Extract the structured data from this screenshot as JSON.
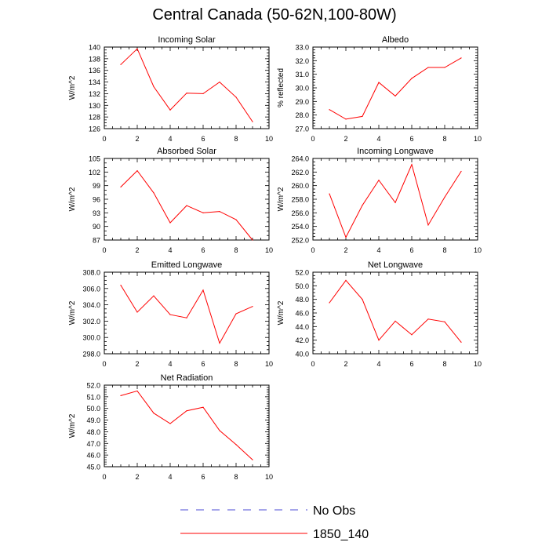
{
  "title": "Central Canada (50-62N,100-80W)",
  "legend": [
    {
      "label": "No Obs",
      "color": "#4b4bd6",
      "dash": true
    },
    {
      "label": "1850_140",
      "color": "#ff0000",
      "dash": false
    }
  ],
  "line_color": "#ff0000",
  "chart_data": [
    {
      "type": "line",
      "title": "Incoming Solar",
      "ylabel": "W/m^2",
      "xlim": [
        0,
        10
      ],
      "xticks": [
        0,
        2,
        4,
        6,
        8,
        10
      ],
      "ylim": [
        126,
        140
      ],
      "yticks": [
        126,
        128,
        130,
        132,
        134,
        136,
        138,
        140
      ],
      "ydec": 0,
      "series": [
        {
          "name": "1850_140",
          "x": [
            1,
            2,
            3,
            4,
            5,
            6,
            7,
            8,
            9
          ],
          "values": [
            137.0,
            139.7,
            133.2,
            129.2,
            132.1,
            132.0,
            134.0,
            131.4,
            127.2
          ]
        }
      ]
    },
    {
      "type": "line",
      "title": "Albedo",
      "ylabel": "% reflected",
      "xlim": [
        0,
        10
      ],
      "xticks": [
        0,
        2,
        4,
        6,
        8,
        10
      ],
      "ylim": [
        27,
        33
      ],
      "yticks": [
        27,
        28,
        29,
        30,
        31,
        32,
        33
      ],
      "ydec": 1,
      "series": [
        {
          "name": "1850_140",
          "x": [
            1,
            2,
            3,
            4,
            5,
            6,
            7,
            8,
            9
          ],
          "values": [
            28.4,
            27.7,
            27.9,
            30.4,
            29.4,
            30.7,
            31.5,
            31.5,
            32.2
          ]
        }
      ]
    },
    {
      "type": "line",
      "title": "Absorbed Solar",
      "ylabel": "W/m^2",
      "xlim": [
        0,
        10
      ],
      "xticks": [
        0,
        2,
        4,
        6,
        8,
        10
      ],
      "ylim": [
        87,
        105
      ],
      "yticks": [
        87,
        90,
        93,
        96,
        99,
        102,
        105
      ],
      "ydec": 0,
      "series": [
        {
          "name": "1850_140",
          "x": [
            1,
            2,
            3,
            4,
            5,
            6,
            7,
            8,
            9
          ],
          "values": [
            98.7,
            102.3,
            97.4,
            90.8,
            94.6,
            93.0,
            93.3,
            91.5,
            87.0
          ]
        }
      ]
    },
    {
      "type": "line",
      "title": "Incoming Longwave",
      "ylabel": "W/m^2",
      "xlim": [
        0,
        10
      ],
      "xticks": [
        0,
        2,
        4,
        6,
        8,
        10
      ],
      "ylim": [
        252,
        264
      ],
      "yticks": [
        252,
        254,
        256,
        258,
        260,
        262,
        264
      ],
      "ydec": 1,
      "series": [
        {
          "name": "1850_140",
          "x": [
            1,
            2,
            3,
            4,
            5,
            6,
            7,
            8,
            9
          ],
          "values": [
            258.8,
            252.4,
            257.1,
            260.8,
            257.5,
            263.1,
            254.2,
            258.3,
            262.1
          ]
        }
      ]
    },
    {
      "type": "line",
      "title": "Emitted Longwave",
      "ylabel": "W/m^2",
      "xlim": [
        0,
        10
      ],
      "xticks": [
        0,
        2,
        4,
        6,
        8,
        10
      ],
      "ylim": [
        298,
        308
      ],
      "yticks": [
        298,
        300,
        302,
        304,
        306,
        308
      ],
      "ydec": 1,
      "series": [
        {
          "name": "1850_140",
          "x": [
            1,
            2,
            3,
            4,
            5,
            6,
            7,
            8,
            9
          ],
          "values": [
            306.4,
            303.1,
            305.1,
            302.8,
            302.4,
            305.8,
            299.3,
            302.9,
            303.8
          ]
        }
      ]
    },
    {
      "type": "line",
      "title": "Net Longwave",
      "ylabel": "W/m^2",
      "xlim": [
        0,
        10
      ],
      "xticks": [
        0,
        2,
        4,
        6,
        8,
        10
      ],
      "ylim": [
        40,
        52
      ],
      "yticks": [
        40,
        42,
        44,
        46,
        48,
        50,
        52
      ],
      "ydec": 1,
      "series": [
        {
          "name": "1850_140",
          "x": [
            1,
            2,
            3,
            4,
            5,
            6,
            7,
            8,
            9
          ],
          "values": [
            47.5,
            50.8,
            48.0,
            42.0,
            44.8,
            42.8,
            45.1,
            44.7,
            41.7
          ]
        }
      ]
    },
    {
      "type": "line",
      "title": "Net Radiation",
      "ylabel": "W/m^2",
      "xlim": [
        0,
        10
      ],
      "xticks": [
        0,
        2,
        4,
        6,
        8,
        10
      ],
      "ylim": [
        45,
        52
      ],
      "yticks": [
        45,
        46,
        47,
        48,
        49,
        50,
        51,
        52
      ],
      "ydec": 1,
      "series": [
        {
          "name": "1850_140",
          "x": [
            1,
            2,
            3,
            4,
            5,
            6,
            7,
            8,
            9
          ],
          "values": [
            51.1,
            51.5,
            49.6,
            48.7,
            49.8,
            50.1,
            48.1,
            46.9,
            45.6
          ]
        }
      ]
    }
  ]
}
